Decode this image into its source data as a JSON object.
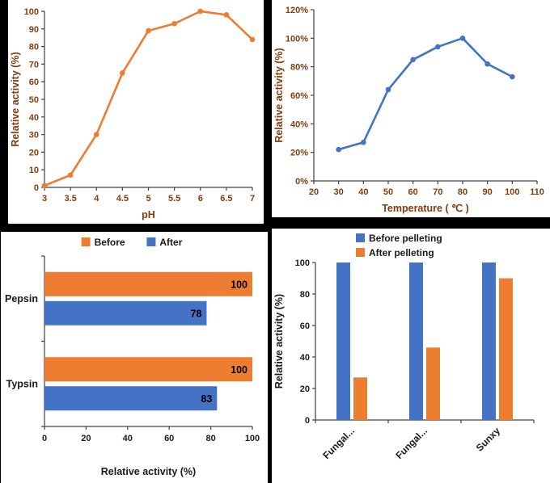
{
  "colors": {
    "orange": "#ED7D31",
    "blue": "#4472C4",
    "top_charts_text": "#833C0C",
    "bottom_charts_text": "#1a1a1a",
    "background": "#000000",
    "panel_background": "#FFFFFF",
    "axis_line": "#404040"
  },
  "chart_data": [
    {
      "id": "ph",
      "type": "line",
      "title": "",
      "xlabel": "pH",
      "ylabel": "Relative activity (%)",
      "x": [
        3,
        3.5,
        4,
        4.5,
        5,
        5.5,
        6,
        6.5,
        7
      ],
      "values": [
        1,
        7,
        30,
        65,
        89,
        93,
        100,
        98,
        84
      ],
      "xlim": [
        3,
        7
      ],
      "ylim": [
        0,
        100
      ],
      "xtick_step": 0.5,
      "ytick_step": 10,
      "ytick_format": "number",
      "line_color": "#ED7D31",
      "label_color": "#833C0C",
      "grid": false,
      "legend": "none"
    },
    {
      "id": "temperature",
      "type": "line",
      "title": "",
      "xlabel": "Temperature ( ℃ )",
      "ylabel": "Relative activity (%)",
      "x": [
        30,
        40,
        50,
        60,
        70,
        80,
        90,
        100
      ],
      "values": [
        22,
        27,
        64,
        85,
        94,
        100,
        82,
        73
      ],
      "xlim": [
        20,
        110
      ],
      "ylim": [
        0,
        120
      ],
      "xtick_step": 10,
      "ytick_step": 20,
      "ytick_format": "percent",
      "line_color": "#4472C4",
      "label_color": "#833C0C",
      "grid": false,
      "legend": "none"
    },
    {
      "id": "protease",
      "type": "bar-horizontal",
      "title": "",
      "xlabel": "Relative activity (%)",
      "categories": [
        "Pepsin",
        "Typsin"
      ],
      "series": [
        {
          "name": "Before",
          "color": "#ED7D31",
          "values": [
            100,
            100
          ]
        },
        {
          "name": "After",
          "color": "#4472C4",
          "values": [
            78,
            83
          ]
        }
      ],
      "xlim": [
        0,
        100
      ],
      "xtick_step": 20,
      "value_labels": true,
      "label_color": "#1a1a1a",
      "legend_position": "top-center",
      "grid": false
    },
    {
      "id": "pelleting",
      "type": "bar-vertical",
      "title": "",
      "ylabel": "Relative activity (%)",
      "categories": [
        "Fungal...",
        "Fungal...",
        "Sunxy"
      ],
      "series": [
        {
          "name": "Before pelleting",
          "color": "#4472C4",
          "values": [
            100,
            100,
            100
          ]
        },
        {
          "name": "After pelleting",
          "color": "#ED7D31",
          "values": [
            27,
            46,
            90
          ]
        }
      ],
      "ylim": [
        0,
        100
      ],
      "ytick_step": 20,
      "xtick_rotation": -45,
      "label_color": "#1a1a1a",
      "legend_position": "top-left",
      "grid": false
    }
  ]
}
